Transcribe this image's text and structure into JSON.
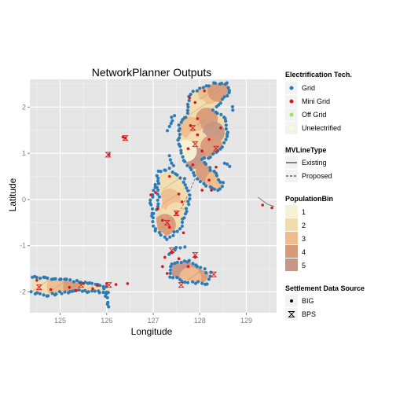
{
  "chart_data": {
    "type": "scatter",
    "title": "NetworkPlanner Outputs",
    "xlabel": "Longitude",
    "ylabel": "Latitude",
    "xlim": [
      124.35,
      129.65
    ],
    "ylim": [
      -2.45,
      2.6
    ],
    "xticks": [
      {
        "value": 125,
        "label": "125"
      },
      {
        "value": 126,
        "label": "126"
      },
      {
        "value": 127,
        "label": "127"
      },
      {
        "value": 128,
        "label": "128"
      },
      {
        "value": 129,
        "label": "129"
      }
    ],
    "yticks": [
      {
        "value": -2,
        "label": "-2"
      },
      {
        "value": -1,
        "label": "-1"
      },
      {
        "value": 0,
        "label": "0"
      },
      {
        "value": 1,
        "label": "1"
      },
      {
        "value": 2,
        "label": "2"
      }
    ],
    "grid": true,
    "legend_position": "right",
    "legends": {
      "tech": {
        "title": "Electrification Tech.",
        "items": [
          {
            "label": "Grid",
            "color": "#2c7bb6"
          },
          {
            "label": "Mini Grid",
            "color": "#d7191c"
          },
          {
            "label": "Off Grid",
            "color": "#a6d96a"
          },
          {
            "label": "Unelectrified",
            "color": "#ffffbf"
          }
        ]
      },
      "line": {
        "title": "MVLineType",
        "items": [
          {
            "label": "Existing",
            "dash": "solid"
          },
          {
            "label": "Proposed",
            "dash": "dashed"
          }
        ]
      },
      "population": {
        "title": "PopulationBin",
        "items": [
          {
            "label": "1",
            "color": "#f7f2d6"
          },
          {
            "label": "2",
            "color": "#f1dcb0"
          },
          {
            "label": "3",
            "color": "#eebd8e"
          },
          {
            "label": "4",
            "color": "#d99a7a"
          },
          {
            "label": "5",
            "color": "#c79686"
          }
        ]
      },
      "source": {
        "title": "Settlement Data Source",
        "items": [
          {
            "label": "BIG",
            "shape": "dot"
          },
          {
            "label": "BPS",
            "shape": "hourglass"
          }
        ]
      }
    },
    "colors": {
      "panel": "#e5e5e5",
      "grid": "#ffffff",
      "grid_settlement": "#2c7bb6",
      "mini_grid_settlement": "#d7191c"
    },
    "regions": [
      {
        "name": "north-island",
        "path": [
          [
            127.75,
            2.0
          ],
          [
            127.8,
            2.28
          ],
          [
            128.0,
            2.42
          ],
          [
            128.35,
            2.52
          ],
          [
            128.6,
            2.5
          ],
          [
            128.65,
            2.3
          ],
          [
            128.45,
            2.1
          ],
          [
            128.3,
            1.95
          ],
          [
            128.55,
            1.75
          ],
          [
            128.6,
            1.4
          ],
          [
            128.45,
            1.1
          ],
          [
            128.25,
            0.92
          ],
          [
            128.05,
            0.85
          ],
          [
            128.3,
            0.6
          ],
          [
            128.5,
            0.35
          ],
          [
            128.4,
            0.2
          ],
          [
            128.15,
            0.32
          ],
          [
            127.95,
            0.45
          ],
          [
            127.7,
            0.8
          ],
          [
            127.55,
            1.2
          ],
          [
            127.55,
            1.6
          ],
          [
            127.7,
            1.8
          ]
        ],
        "bins": [
          {
            "x": 128.2,
            "y": 2.3,
            "bin": 3
          },
          {
            "x": 128.4,
            "y": 2.35,
            "bin": 4
          },
          {
            "x": 127.95,
            "y": 1.95,
            "bin": 2
          },
          {
            "x": 128.15,
            "y": 1.75,
            "bin": 4
          },
          {
            "x": 127.8,
            "y": 1.55,
            "bin": 3
          },
          {
            "x": 128.3,
            "y": 1.45,
            "bin": 5
          },
          {
            "x": 127.95,
            "y": 1.25,
            "bin": 2
          },
          {
            "x": 128.25,
            "y": 1.15,
            "bin": 4
          },
          {
            "x": 127.9,
            "y": 0.9,
            "bin": 5
          },
          {
            "x": 128.15,
            "y": 0.6,
            "bin": 4
          },
          {
            "x": 128.35,
            "y": 0.38,
            "bin": 3
          },
          {
            "x": 127.7,
            "y": 1.05,
            "bin": 1
          }
        ]
      },
      {
        "name": "central-island",
        "path": [
          [
            127.15,
            0.55
          ],
          [
            127.4,
            0.62
          ],
          [
            127.62,
            0.45
          ],
          [
            127.75,
            0.1
          ],
          [
            127.7,
            -0.25
          ],
          [
            127.55,
            -0.6
          ],
          [
            127.3,
            -0.8
          ],
          [
            127.1,
            -0.65
          ],
          [
            127.05,
            -0.35
          ],
          [
            127.2,
            -0.1
          ],
          [
            127.15,
            0.2
          ]
        ],
        "bins": [
          {
            "x": 127.4,
            "y": 0.35,
            "bin": 2
          },
          {
            "x": 127.35,
            "y": 0.0,
            "bin": 3
          },
          {
            "x": 127.5,
            "y": -0.3,
            "bin": 2
          },
          {
            "x": 127.25,
            "y": -0.55,
            "bin": 4
          }
        ]
      },
      {
        "name": "south-island",
        "path": [
          [
            127.4,
            -1.4
          ],
          [
            127.8,
            -1.35
          ],
          [
            128.0,
            -1.5
          ],
          [
            128.2,
            -1.6
          ],
          [
            128.15,
            -1.8
          ],
          [
            127.7,
            -1.75
          ],
          [
            127.4,
            -1.65
          ]
        ],
        "bins": [
          {
            "x": 127.6,
            "y": -1.5,
            "bin": 5
          },
          {
            "x": 127.95,
            "y": -1.6,
            "bin": 4
          },
          {
            "x": 127.8,
            "y": -1.7,
            "bin": 3
          }
        ]
      },
      {
        "name": "west-peninsula",
        "path": [
          [
            124.4,
            -1.7
          ],
          [
            124.75,
            -1.72
          ],
          [
            125.1,
            -1.75
          ],
          [
            125.4,
            -1.8
          ],
          [
            125.7,
            -1.85
          ],
          [
            126.0,
            -1.9
          ],
          [
            126.1,
            -1.98
          ],
          [
            125.8,
            -1.98
          ],
          [
            125.4,
            -1.95
          ],
          [
            125.0,
            -2.0
          ],
          [
            124.7,
            -2.05
          ],
          [
            124.4,
            -2.0
          ]
        ],
        "bins": [
          {
            "x": 124.6,
            "y": -1.85,
            "bin": 2
          },
          {
            "x": 124.95,
            "y": -1.88,
            "bin": 3
          },
          {
            "x": 125.3,
            "y": -1.88,
            "bin": 4
          },
          {
            "x": 125.65,
            "y": -1.9,
            "bin": 2
          }
        ]
      }
    ],
    "mv_lines": [
      {
        "type": "Existing",
        "path": [
          [
            129.25,
            0.05
          ],
          [
            129.45,
            -0.1
          ],
          [
            129.6,
            -0.15
          ]
        ]
      },
      {
        "type": "Proposed",
        "path": [
          [
            127.9,
            0.45
          ],
          [
            127.75,
            0.1
          ],
          [
            127.6,
            -0.2
          ]
        ]
      }
    ],
    "grid_tracks": [
      {
        "path": [
          [
            127.75,
            2.0
          ],
          [
            127.8,
            2.28
          ],
          [
            128.0,
            2.42
          ],
          [
            128.35,
            2.52
          ],
          [
            128.6,
            2.5
          ],
          [
            128.65,
            2.3
          ],
          [
            128.45,
            2.1
          ],
          [
            128.3,
            1.95
          ],
          [
            128.55,
            1.75
          ],
          [
            128.6,
            1.4
          ],
          [
            128.45,
            1.1
          ],
          [
            128.25,
            0.92
          ],
          [
            128.05,
            0.85
          ],
          [
            128.3,
            0.6
          ],
          [
            128.5,
            0.35
          ],
          [
            128.4,
            0.2
          ],
          [
            128.15,
            0.32
          ],
          [
            127.95,
            0.45
          ],
          [
            127.7,
            0.8
          ],
          [
            127.55,
            1.2
          ],
          [
            127.55,
            1.6
          ],
          [
            127.7,
            1.8
          ],
          [
            127.75,
            2.0
          ]
        ],
        "step": 0.07
      },
      {
        "path": [
          [
            127.1,
            0.6
          ],
          [
            127.35,
            0.65
          ],
          [
            127.65,
            0.45
          ],
          [
            127.78,
            0.1
          ],
          [
            127.72,
            -0.25
          ],
          [
            127.58,
            -0.62
          ],
          [
            127.3,
            -0.85
          ],
          [
            127.05,
            -0.7
          ],
          [
            126.98,
            -0.35
          ],
          [
            127.12,
            -0.1
          ],
          [
            127.1,
            0.2
          ],
          [
            127.1,
            0.6
          ]
        ],
        "step": 0.07
      },
      {
        "path": [
          [
            127.05,
            0.3
          ],
          [
            126.95,
            0.0
          ],
          [
            126.98,
            -0.35
          ]
        ],
        "step": 0.07
      },
      {
        "path": [
          [
            127.4,
            -1.38
          ],
          [
            127.8,
            -1.32
          ],
          [
            128.02,
            -1.48
          ],
          [
            128.22,
            -1.6
          ],
          [
            128.18,
            -1.82
          ],
          [
            127.7,
            -1.78
          ],
          [
            127.38,
            -1.66
          ],
          [
            127.4,
            -1.38
          ]
        ],
        "step": 0.07
      },
      {
        "path": [
          [
            127.35,
            -1.2
          ],
          [
            127.5,
            -1.05
          ],
          [
            127.75,
            -1.0
          ]
        ],
        "step": 0.08
      },
      {
        "path": [
          [
            124.4,
            -1.68
          ],
          [
            124.75,
            -1.7
          ],
          [
            125.1,
            -1.73
          ],
          [
            125.4,
            -1.78
          ],
          [
            125.7,
            -1.83
          ],
          [
            126.05,
            -1.88
          ]
        ],
        "step": 0.06
      },
      {
        "path": [
          [
            124.4,
            -2.02
          ],
          [
            124.7,
            -2.07
          ],
          [
            125.0,
            -2.02
          ],
          [
            125.4,
            -1.97
          ],
          [
            125.8,
            -2.0
          ],
          [
            126.1,
            -2.0
          ]
        ],
        "step": 0.06
      },
      {
        "path": [
          [
            125.95,
            -1.95
          ],
          [
            126.0,
            -2.15
          ],
          [
            126.05,
            -2.4
          ]
        ],
        "step": 0.06
      },
      {
        "path": [
          [
            127.3,
            1.5
          ],
          [
            127.4,
            1.7
          ],
          [
            127.45,
            1.9
          ]
        ],
        "step": 0.08
      },
      {
        "path": [
          [
            127.35,
            0.95
          ],
          [
            127.4,
            0.8
          ],
          [
            127.5,
            0.7
          ]
        ],
        "step": 0.08
      },
      {
        "path": [
          [
            128.55,
            0.8
          ],
          [
            128.7,
            0.7
          ]
        ],
        "step": 0.07
      },
      {
        "path": [
          [
            128.7,
            1.95
          ],
          [
            128.75,
            2.1
          ]
        ],
        "step": 0.07
      }
    ],
    "mini_grid_points": [
      [
        126.35,
        1.35
      ],
      [
        126.4,
        1.33
      ],
      [
        126.05,
        0.97
      ],
      [
        127.35,
        0.5
      ],
      [
        127.55,
        0.12
      ],
      [
        127.62,
        -0.05
      ],
      [
        127.5,
        -0.3
      ],
      [
        127.2,
        -0.45
      ],
      [
        127.35,
        -0.6
      ],
      [
        127.65,
        -0.72
      ],
      [
        127.1,
        -0.2
      ],
      [
        126.95,
        0.1
      ],
      [
        127.05,
        0.15
      ],
      [
        127.78,
        2.2
      ],
      [
        127.9,
        2.1
      ],
      [
        128.1,
        2.35
      ],
      [
        127.8,
        1.6
      ],
      [
        127.95,
        1.4
      ],
      [
        128.2,
        1.3
      ],
      [
        127.75,
        1.1
      ],
      [
        128.05,
        1.05
      ],
      [
        128.35,
        0.7
      ],
      [
        128.2,
        0.42
      ],
      [
        127.85,
        0.75
      ],
      [
        128.05,
        0.2
      ],
      [
        128.25,
        0.2
      ],
      [
        127.25,
        -1.25
      ],
      [
        127.4,
        -1.15
      ],
      [
        127.55,
        -1.28
      ],
      [
        127.2,
        -1.45
      ],
      [
        127.3,
        -1.6
      ],
      [
        127.9,
        -1.25
      ],
      [
        127.75,
        -1.45
      ],
      [
        124.5,
        -1.75
      ],
      [
        124.8,
        -1.95
      ],
      [
        125.2,
        -1.9
      ],
      [
        125.5,
        -1.82
      ],
      [
        125.8,
        -1.86
      ],
      [
        126.0,
        -1.82
      ],
      [
        126.2,
        -1.84
      ],
      [
        126.45,
        -1.82
      ],
      [
        125.35,
        -1.97
      ],
      [
        125.7,
        -1.93
      ],
      [
        129.35,
        -0.12
      ],
      [
        129.55,
        -0.18
      ],
      [
        127.95,
        1.75
      ],
      [
        128.45,
        1.55
      ]
    ],
    "bps_points": [
      [
        126.4,
        1.33
      ],
      [
        126.03,
        0.97
      ],
      [
        127.85,
        1.55
      ],
      [
        127.9,
        1.2
      ],
      [
        128.35,
        1.1
      ],
      [
        127.5,
        -0.3
      ],
      [
        127.3,
        -0.5
      ],
      [
        127.4,
        -1.1
      ],
      [
        127.9,
        -1.2
      ],
      [
        128.3,
        -1.62
      ],
      [
        124.55,
        -1.9
      ],
      [
        125.45,
        -1.85
      ],
      [
        126.05,
        -1.85
      ],
      [
        127.6,
        -1.85
      ]
    ]
  }
}
